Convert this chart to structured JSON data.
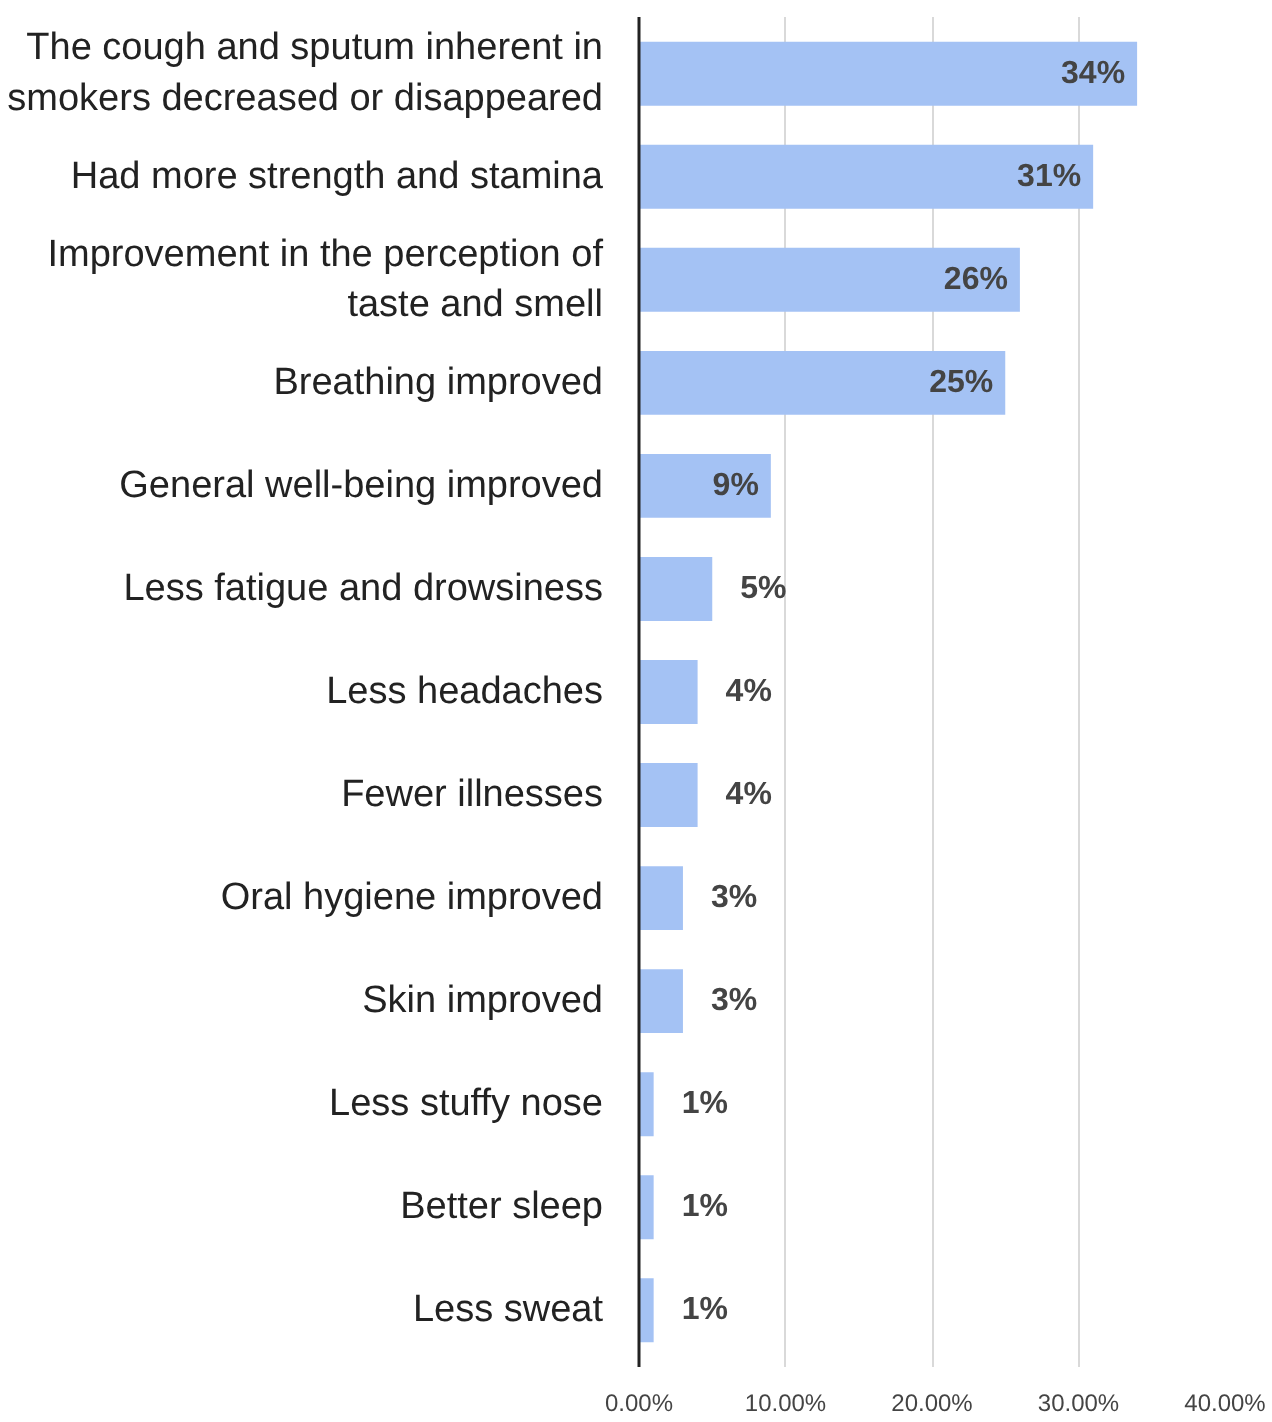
{
  "chart_data": {
    "type": "bar",
    "orientation": "horizontal",
    "categories": [
      "The cough and sputum inherent in smokers decreased or disappeared",
      "Had more strength and stamina",
      "Improvement in the perception of taste and smell",
      "Breathing improved",
      "General well-being improved",
      "Less fatigue and drowsiness",
      "Less headaches",
      "Fewer illnesses",
      "Oral hygiene improved",
      "Skin improved",
      "Less stuffy nose",
      "Better sleep",
      "Less sweat"
    ],
    "values": [
      34,
      31,
      26,
      25,
      9,
      5,
      4,
      4,
      3,
      3,
      1,
      1,
      1
    ],
    "value_labels": [
      "34%",
      "31%",
      "26%",
      "25%",
      "9%",
      "5%",
      "4%",
      "4%",
      "3%",
      "3%",
      "1%",
      "1%",
      "1%"
    ],
    "color": "#a4c2f4",
    "xlim": [
      0,
      40
    ],
    "xticks": [
      {
        "value": 0,
        "label": "0.00%"
      },
      {
        "value": 10,
        "label": "10.00%"
      },
      {
        "value": 20,
        "label": "20.00%"
      },
      {
        "value": 30,
        "label": "30.00%"
      },
      {
        "value": 40,
        "label": "40.00%"
      }
    ],
    "grid": "x"
  }
}
